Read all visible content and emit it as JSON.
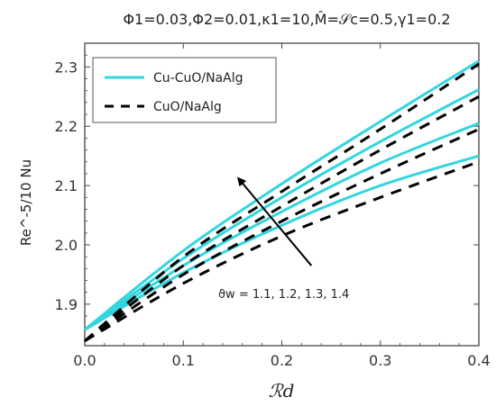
{
  "chart_data": {
    "type": "line",
    "title": "Φ1=0.03,Φ2=0.01,κ1=10,M̂=𝒮c=0.5,γ1=0.2",
    "xlabel": "ℛd",
    "ylabel": "Re^-5/10 Nu",
    "xlim": [
      0.0,
      0.4
    ],
    "ylim": [
      1.83,
      2.34
    ],
    "xticks": [
      0.0,
      0.1,
      0.2,
      0.3,
      0.4
    ],
    "xtick_labels": [
      "0.0",
      "0.1",
      "0.2",
      "0.3",
      "0.4"
    ],
    "yticks": [
      1.9,
      2.0,
      2.1,
      2.2,
      2.3
    ],
    "ytick_labels": [
      "1.9",
      "2.0",
      "2.1",
      "2.2",
      "2.3"
    ],
    "x": [
      0.0,
      0.1,
      0.2,
      0.3,
      0.4
    ],
    "series": [
      {
        "name": "Cu-CuO/NaAlg",
        "style": "solid",
        "color": "#33d6e0",
        "values": [
          1.857,
          1.99,
          2.103,
          2.208,
          2.31
        ]
      },
      {
        "name": "Cu-CuO/NaAlg",
        "style": "solid",
        "color": "#33d6e0",
        "values": [
          1.857,
          1.977,
          2.08,
          2.174,
          2.262
        ]
      },
      {
        "name": "Cu-CuO/NaAlg",
        "style": "solid",
        "color": "#33d6e0",
        "values": [
          1.857,
          1.965,
          2.056,
          2.138,
          2.205
        ]
      },
      {
        "name": "Cu-CuO/NaAlg",
        "style": "solid",
        "color": "#33d6e0",
        "values": [
          1.857,
          1.953,
          2.033,
          2.1,
          2.15
        ]
      },
      {
        "name": "CuO/NaAlg",
        "style": "dashed",
        "color": "#000000",
        "values": [
          1.838,
          1.98,
          2.09,
          2.195,
          2.305
        ]
      },
      {
        "name": "CuO/NaAlg",
        "style": "dashed",
        "color": "#000000",
        "values": [
          1.838,
          1.965,
          2.065,
          2.16,
          2.25
        ]
      },
      {
        "name": "CuO/NaAlg",
        "style": "dashed",
        "color": "#000000",
        "values": [
          1.838,
          1.95,
          2.04,
          2.12,
          2.195
        ]
      },
      {
        "name": "CuO/NaAlg",
        "style": "dashed",
        "color": "#000000",
        "values": [
          1.838,
          1.935,
          2.015,
          2.08,
          2.14
        ]
      }
    ],
    "legend": {
      "placement": "top-left",
      "entries": [
        {
          "label": "Cu-CuO/NaAlg",
          "style": "solid",
          "color": "#33d6e0"
        },
        {
          "label": "CuO/NaAlg",
          "style": "dashed",
          "color": "#000000"
        }
      ]
    },
    "annotation": {
      "text": "ϑw = 1.1, 1.2, 1.3, 1.4",
      "arrow_from": [
        0.23,
        1.965
      ],
      "arrow_to": [
        0.157,
        2.11
      ]
    },
    "grid": false,
    "colors": {
      "hybrid": "#33d6e0",
      "mono": "#000000",
      "axes": "#444444"
    }
  }
}
